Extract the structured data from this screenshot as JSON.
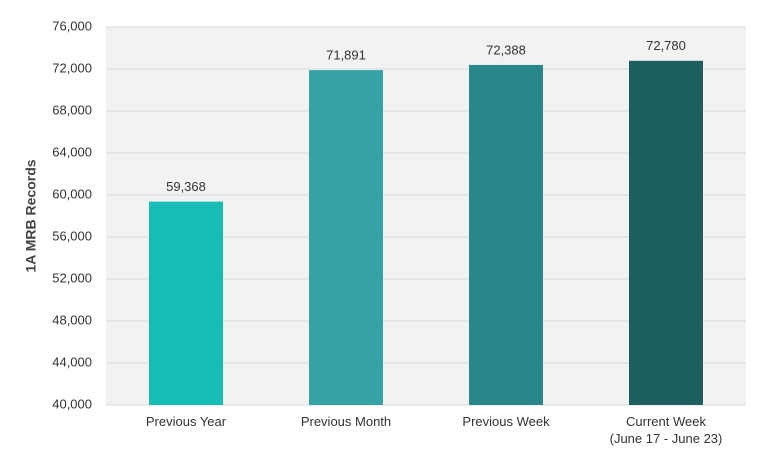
{
  "chart_data": {
    "type": "bar",
    "y_label": "1A MRB Records",
    "categories": [
      "Previous Year",
      "Previous Month",
      "Previous Week",
      "Current Week\n(June 17 - June 23)"
    ],
    "values": [
      59368,
      71891,
      72388,
      72780
    ],
    "value_labels": [
      "59,368",
      "71,891",
      "72,388",
      "72,780"
    ],
    "colors": [
      "#17bcb4",
      "#35a3a5",
      "#27878a",
      "#1c5f5e"
    ],
    "ylim": [
      40000,
      76000
    ],
    "yticks": [
      {
        "value": 40000,
        "label": "40,000"
      },
      {
        "value": 44000,
        "label": "44,000"
      },
      {
        "value": 48000,
        "label": "48,000"
      },
      {
        "value": 52000,
        "label": "52,000"
      },
      {
        "value": 56000,
        "label": "56,000"
      },
      {
        "value": 60000,
        "label": "60,000"
      },
      {
        "value": 64000,
        "label": "64,000"
      },
      {
        "value": 68000,
        "label": "68,000"
      },
      {
        "value": 72000,
        "label": "72,000"
      },
      {
        "value": 76000,
        "label": "76,000"
      }
    ],
    "grid": true
  }
}
